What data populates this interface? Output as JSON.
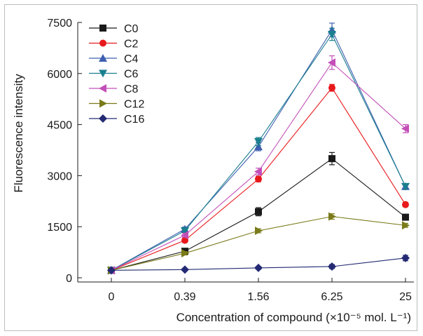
{
  "chart_data": {
    "type": "line",
    "categories": [
      "0",
      "0.39",
      "1.56",
      "6.25",
      "25"
    ],
    "xlabel": "Concentration of compound (×10⁻⁵ mol. L⁻¹)",
    "ylabel": "Fluorescence intensity",
    "ylim": [
      0,
      7500
    ],
    "yticks": [
      0,
      1500,
      3000,
      4500,
      6000,
      7500
    ],
    "grid": false,
    "legend_position": "top-left",
    "series": [
      {
        "name": "C0",
        "color": "#1a1a1a",
        "marker": "square",
        "values": [
          220,
          780,
          1940,
          3500,
          1780
        ],
        "errors": [
          40,
          60,
          120,
          180,
          60
        ]
      },
      {
        "name": "C2",
        "color": "#e8191c",
        "marker": "circle",
        "values": [
          220,
          1100,
          2900,
          5580,
          2150
        ],
        "errors": [
          40,
          60,
          80,
          100,
          60
        ]
      },
      {
        "name": "C4",
        "color": "#3f5fb0",
        "marker": "triangle-up",
        "values": [
          220,
          1430,
          3850,
          7280,
          2680
        ],
        "errors": [
          40,
          60,
          120,
          200,
          80
        ]
      },
      {
        "name": "C6",
        "color": "#1a7f8f",
        "marker": "triangle-down",
        "values": [
          220,
          1380,
          4000,
          7150,
          2680
        ],
        "errors": [
          40,
          60,
          120,
          180,
          80
        ]
      },
      {
        "name": "C8",
        "color": "#c34fb9",
        "marker": "triangle-left",
        "values": [
          220,
          1250,
          3120,
          6320,
          4380
        ],
        "errors": [
          40,
          60,
          100,
          200,
          120
        ]
      },
      {
        "name": "C12",
        "color": "#7a7a1a",
        "marker": "triangle-right",
        "values": [
          220,
          720,
          1380,
          1800,
          1540
        ],
        "errors": [
          40,
          50,
          60,
          80,
          60
        ]
      },
      {
        "name": "C16",
        "color": "#232a73",
        "marker": "diamond",
        "values": [
          220,
          240,
          290,
          330,
          580
        ],
        "errors": [
          30,
          30,
          40,
          60,
          80
        ]
      }
    ]
  }
}
